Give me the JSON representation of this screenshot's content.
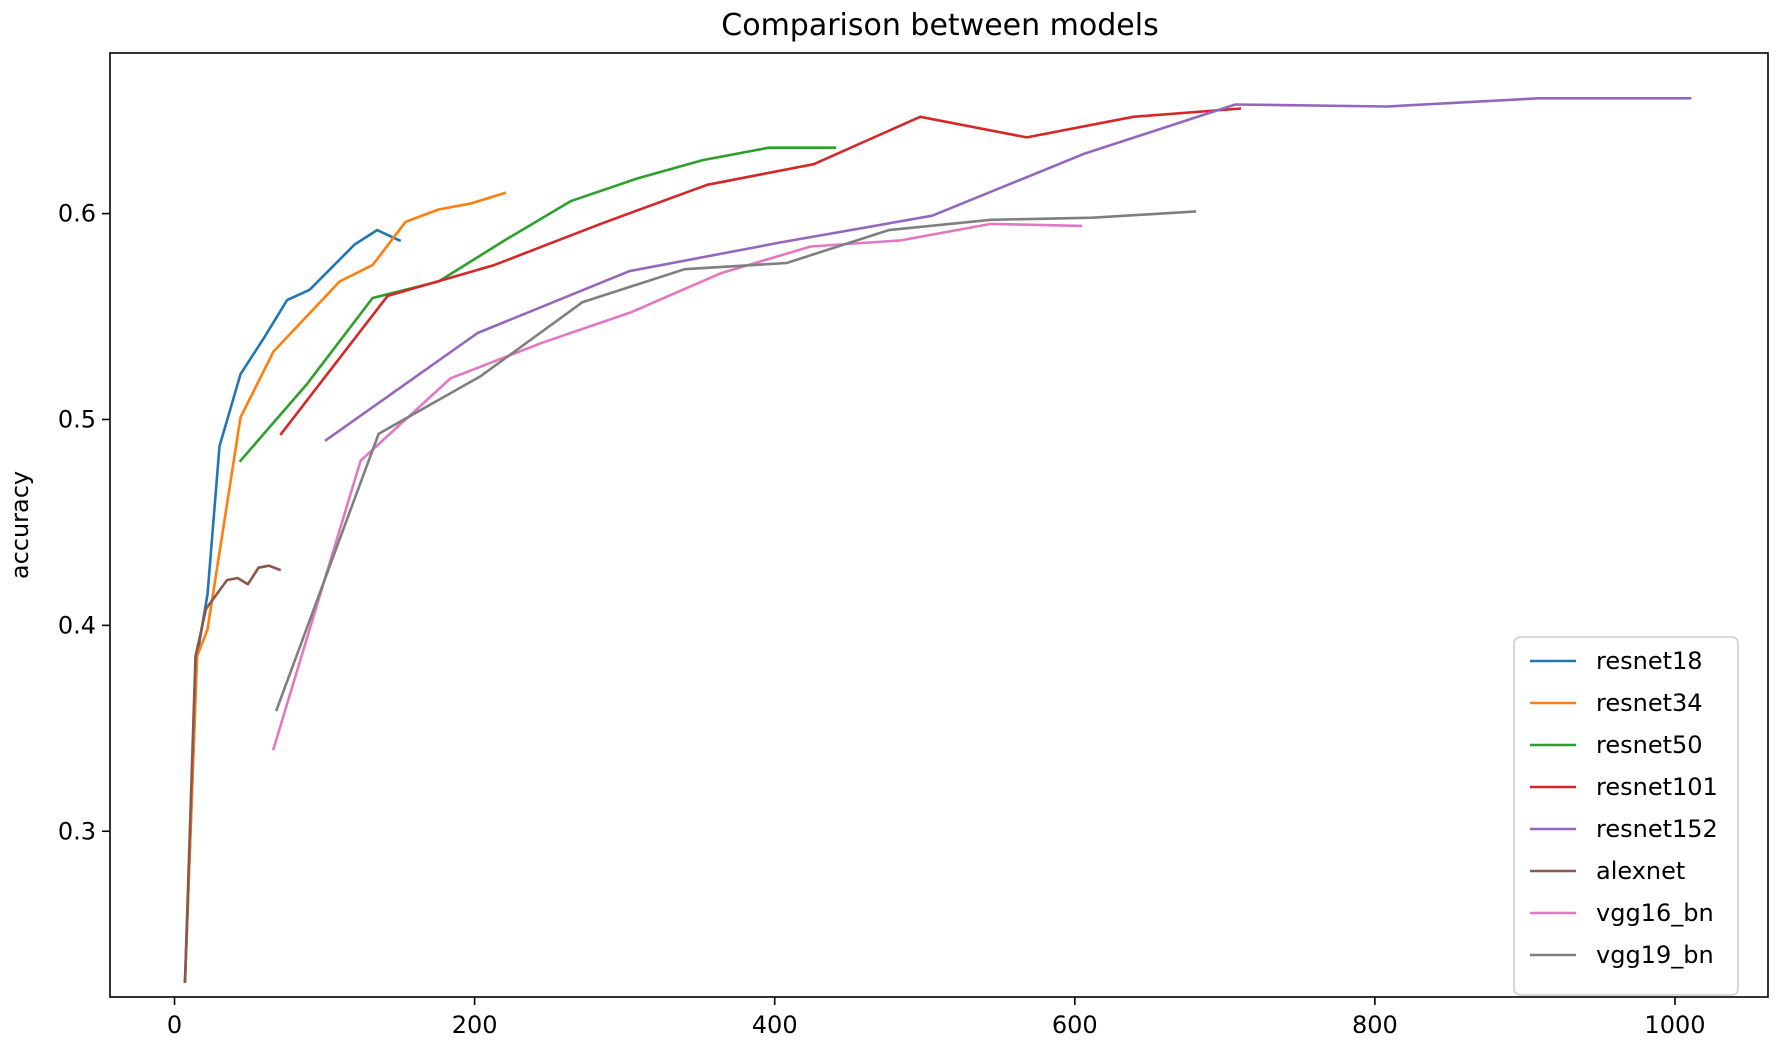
{
  "chart_data": {
    "type": "line",
    "title": "Comparison between models",
    "xlabel": "",
    "ylabel": "accuracy",
    "xlim": [
      -43,
      1062
    ],
    "ylim": [
      0.2195,
      0.678
    ],
    "xticks": [
      0,
      200,
      400,
      600,
      800,
      1000
    ],
    "yticks": [
      0.3,
      0.4,
      0.5,
      0.6
    ],
    "xtick_labels": [
      "0",
      "200",
      "400",
      "600",
      "800",
      "1000"
    ],
    "ytick_labels": [
      "0.3",
      "0.4",
      "0.5",
      "0.6"
    ],
    "grid": false,
    "legend_position": "lower right",
    "series": [
      {
        "name": "resnet18",
        "color": "#1f77b4",
        "x": [
          7,
          15,
          22,
          30,
          44,
          60,
          75,
          90,
          120,
          135,
          150
        ],
        "y": [
          0.227,
          0.385,
          0.415,
          0.487,
          0.522,
          0.54,
          0.558,
          0.563,
          0.585,
          0.592,
          0.587
        ]
      },
      {
        "name": "resnet34",
        "color": "#ff7f0e",
        "x": [
          7,
          15,
          22,
          44,
          66,
          110,
          132,
          154,
          176,
          198,
          220
        ],
        "y": [
          0.227,
          0.385,
          0.398,
          0.501,
          0.533,
          0.567,
          0.575,
          0.596,
          0.602,
          0.605,
          0.61
        ]
      },
      {
        "name": "resnet50",
        "color": "#2ca02c",
        "x": [
          44,
          88,
          132,
          176,
          220,
          264,
          308,
          352,
          396,
          440
        ],
        "y": [
          0.48,
          0.517,
          0.559,
          0.567,
          0.587,
          0.606,
          0.617,
          0.626,
          0.632,
          0.632
        ]
      },
      {
        "name": "resnet101",
        "color": "#d62728",
        "x": [
          71,
          142,
          213,
          284,
          355,
          426,
          497,
          568,
          639,
          710
        ],
        "y": [
          0.493,
          0.56,
          0.575,
          0.595,
          0.614,
          0.624,
          0.647,
          0.637,
          0.647,
          0.651
        ]
      },
      {
        "name": "resnet152",
        "color": "#9467bd",
        "x": [
          101,
          202,
          303,
          404,
          505,
          606,
          707,
          808,
          909,
          1010
        ],
        "y": [
          0.49,
          0.542,
          0.572,
          0.586,
          0.599,
          0.629,
          0.653,
          0.652,
          0.656,
          0.656
        ]
      },
      {
        "name": "alexnet",
        "color": "#8c564b",
        "x": [
          7,
          14,
          21,
          28,
          35,
          42,
          49,
          56,
          63,
          70
        ],
        "y": [
          0.227,
          0.385,
          0.408,
          0.415,
          0.422,
          0.423,
          0.42,
          0.428,
          0.429,
          0.427
        ]
      },
      {
        "name": "vgg16_bn",
        "color": "#e377c2",
        "x": [
          66,
          124,
          184,
          244,
          304,
          364,
          424,
          484,
          544,
          604
        ],
        "y": [
          0.34,
          0.48,
          0.52,
          0.537,
          0.552,
          0.571,
          0.584,
          0.587,
          0.595,
          0.594
        ]
      },
      {
        "name": "vgg19_bn",
        "color": "#7f7f7f",
        "x": [
          68,
          136,
          204,
          272,
          340,
          408,
          476,
          544,
          612,
          680
        ],
        "y": [
          0.359,
          0.493,
          0.521,
          0.557,
          0.573,
          0.576,
          0.592,
          0.597,
          0.598,
          0.601
        ]
      }
    ]
  }
}
